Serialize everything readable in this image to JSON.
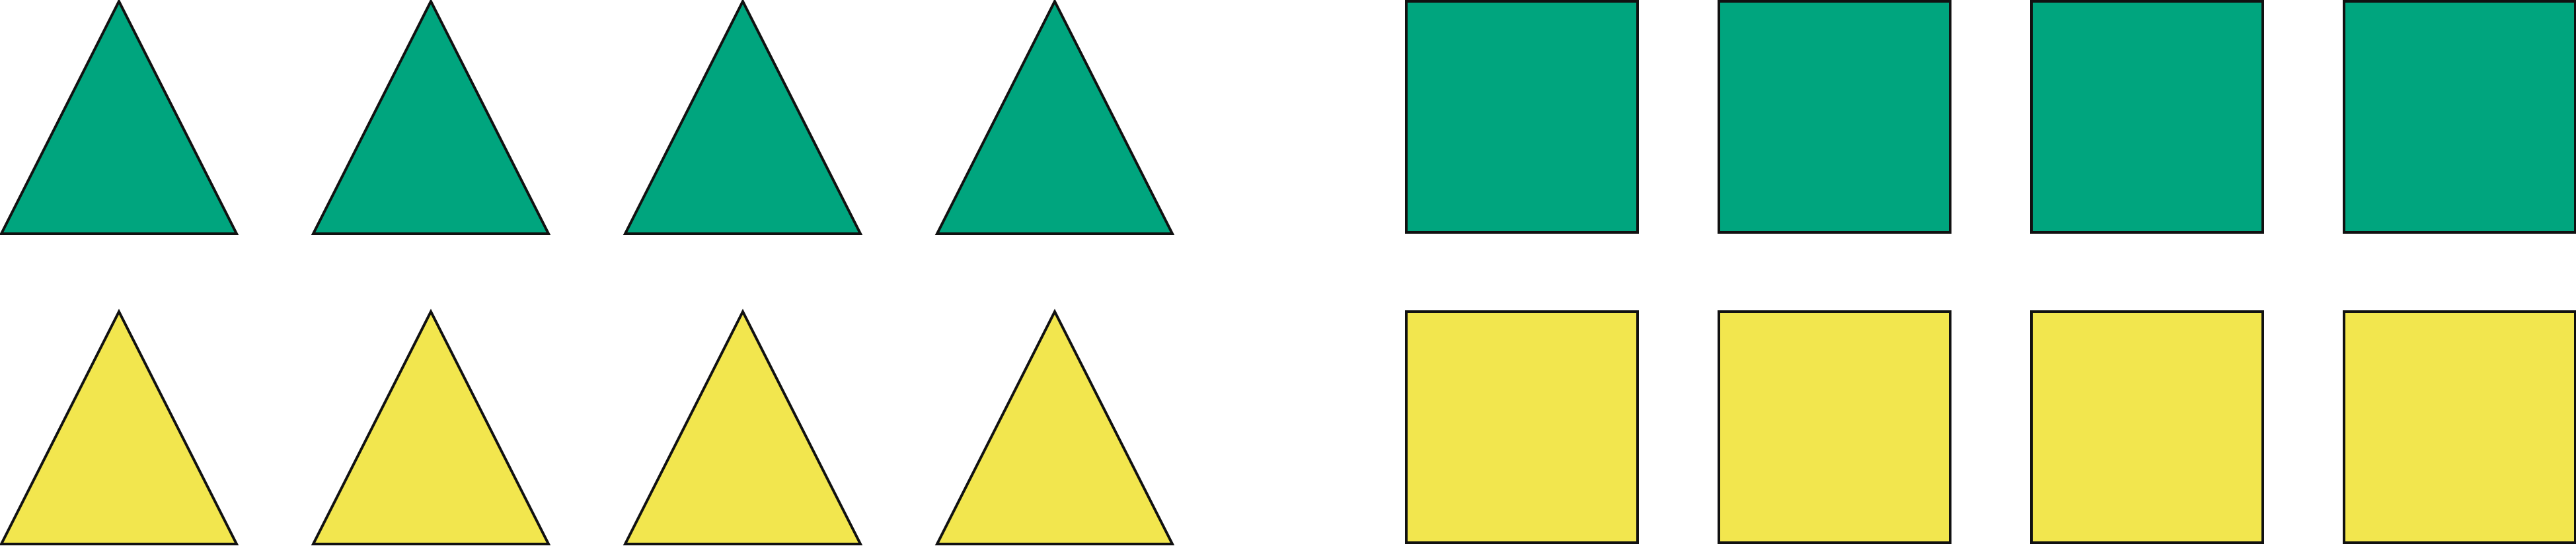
{
  "colors": {
    "green": "#00A57E",
    "yellow": "#F2E64E",
    "stroke": "#111111",
    "background": "#FFFFFF"
  },
  "groups": [
    {
      "shape": "triangle",
      "color": "green",
      "count": 4
    },
    {
      "shape": "square",
      "color": "green",
      "count": 4
    },
    {
      "shape": "triangle",
      "color": "yellow",
      "count": 4
    },
    {
      "shape": "square",
      "color": "yellow",
      "count": 4
    }
  ]
}
